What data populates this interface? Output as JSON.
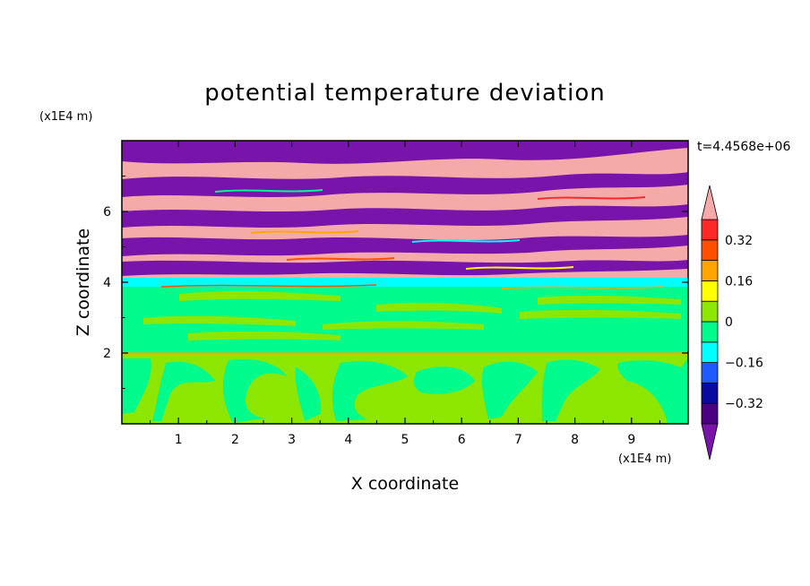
{
  "chart_data": {
    "type": "heatmap",
    "title": "potential temperature deviation",
    "xlabel": "X coordinate",
    "ylabel": "Z coordinate",
    "x_unit": "(x1E4 m)",
    "y_unit": "(x1E4 m)",
    "time_label": "t=4.4568e+06",
    "xlim": [
      0,
      10
    ],
    "ylim": [
      0,
      8
    ],
    "x_ticks": [
      "1",
      "2",
      "3",
      "4",
      "5",
      "6",
      "7",
      "8",
      "9"
    ],
    "y_ticks": [
      "2",
      "4",
      "6"
    ],
    "grid": false,
    "legend": "colorbar-right",
    "colorbar": {
      "levels": [
        -0.4,
        -0.32,
        -0.24,
        -0.16,
        -0.08,
        0,
        0.08,
        0.16,
        0.24,
        0.32,
        0.4
      ],
      "tick_labels": [
        "0.32",
        "0.16",
        "0",
        "−0.16",
        "−0.32"
      ],
      "tick_values": [
        0.32,
        0.16,
        0,
        -0.16,
        -0.32
      ],
      "colors": [
        "#4b0082",
        "#0a0aa0",
        "#1e5aff",
        "#00ffff",
        "#00fa8c",
        "#8ce600",
        "#ffff00",
        "#ffa500",
        "#ff5000",
        "#ff2828"
      ],
      "under_color": "#7814aa",
      "over_color": "#f5aaaa"
    },
    "regions": [
      {
        "z": [
          0.0,
          2.0
        ],
        "value": 0.06,
        "note": "light green convective cells"
      },
      {
        "z": [
          0.0,
          2.0
        ],
        "value": -0.03,
        "note": "green patches"
      },
      {
        "z": [
          2.0,
          3.9
        ],
        "value": -0.02,
        "note": "green layer"
      },
      {
        "z": [
          3.9,
          4.2
        ],
        "value": -0.2,
        "note": "cyan band"
      },
      {
        "z": [
          4.2,
          8.0
        ],
        "value": 0.45,
        "note": "pink layers"
      },
      {
        "z": [
          4.2,
          8.0
        ],
        "value": -0.45,
        "note": "purple layers"
      }
    ]
  }
}
